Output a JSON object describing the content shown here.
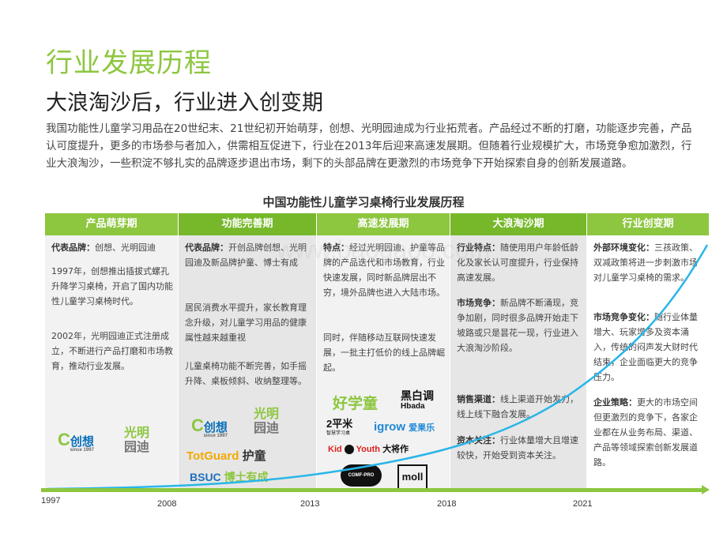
{
  "page": {
    "title": "行业发展历程",
    "subtitle": "大浪淘沙后，行业进入创变期",
    "intro": "我国功能性儿童学习用品在20世纪末、21世纪初开始萌芽，创想、光明园迪成为行业拓荒者。产品经过不断的打磨，功能逐步完善，产品认可度提升，更多的市场参与者加入，供需相互促进下，行业在2013年后迎来高速发展期。但随着行业规模扩大，市场竞争愈加激烈，行业大浪淘沙，一些积淀不够扎实的品牌逐步退出市场，剩下的头部品牌在更激烈的市场竞争下开始探索自身的创新发展道路。"
  },
  "timeline": {
    "title": "中国功能性儿童学习桌椅行业发展历程",
    "stages": [
      {
        "name": "产品萌芽期",
        "p1_label": "代表品牌：",
        "p1_text": "创想、光明园迪",
        "p2": "1997年，创想推出插拔式螺孔升降学习桌椅，开启了国内功能性儿童学习桌椅时代。",
        "p3": "2002年，光明园迪正式注册成立，不断进行产品打磨和市场教育，推动行业发展。",
        "logos": [
          "创想",
          "since 1997",
          "光明",
          "园迪"
        ]
      },
      {
        "name": "功能完善期",
        "p1_label": "代表品牌：",
        "p1_text": "开创品牌创想、光明园迪及新品牌护童、博士有成",
        "p2": "居民消费水平提升，家长教育理念升级，对儿童学习用品的健康属性越来越重视",
        "p3": "儿童桌椅功能不断完善，如手摇升降、桌板倾斜、收纳整理等。",
        "logos": [
          "创想",
          "since 1997",
          "光明",
          "园迪",
          "TotGuard",
          "护童",
          "BSUC",
          "博士有成"
        ]
      },
      {
        "name": "高速发展期",
        "p1_label": "特点：",
        "p1_text": "经过光明园迪、护童等品牌的产品迭代和市场教育，行业快速发展，同时新品牌层出不穷，境外品牌也进入大陆市场。",
        "p2": "同时，伴随移动互联网快速发展，一批主打低价的线上品牌崛起。",
        "logos": [
          "好学童",
          "黑白调",
          "Hbada",
          "2平米",
          "智慧学习桌",
          "igrow",
          "爱果乐",
          "Kid",
          "Youth",
          "大将作",
          "COMF-PRO",
          "moll"
        ]
      },
      {
        "name": "大浪淘沙期",
        "s1_label": "行业特点：",
        "s1_text": "随使用用户年龄低龄化及家长认可度提升，行业保持高速发展。",
        "s2_label": "市场竞争：",
        "s2_text": "新品牌不断涌现，竞争加剧，同时很多品牌开始走下坡路或只是昙花一现，行业进入大浪淘沙阶段。",
        "s3_label": "销售渠道：",
        "s3_text": "线上渠道开始发力，线上线下融合发展。",
        "s4_label": "资本关注：",
        "s4_text": "行业体量增大且增速较快，开始受到资本关注。"
      },
      {
        "name": "行业创变期",
        "s1_label": "外部环境变化：",
        "s1_text": "三孩政策、双减政策将进一步刺激市场对儿童学习桌椅的需求。",
        "s2_label": "市场竞争变化：",
        "s2_text": "随行业体量增大、玩家增多及资本涌入，传统的闷声发大财时代结束，企业面临更大的竞争压力。",
        "s3_label": "企业策略：",
        "s3_text": "更大的市场空间但更激烈的竞争下，各家企业都在从业务布局、渠道、产品等领域探索创新发展道路。"
      }
    ],
    "years": [
      "1997",
      "2008",
      "2013",
      "2018",
      "2021"
    ]
  },
  "colors": {
    "accent": "#8dc63f",
    "accent_dark": "#76b82a",
    "curve": "#29b6e8"
  },
  "watermark": "www.baogao8.com"
}
